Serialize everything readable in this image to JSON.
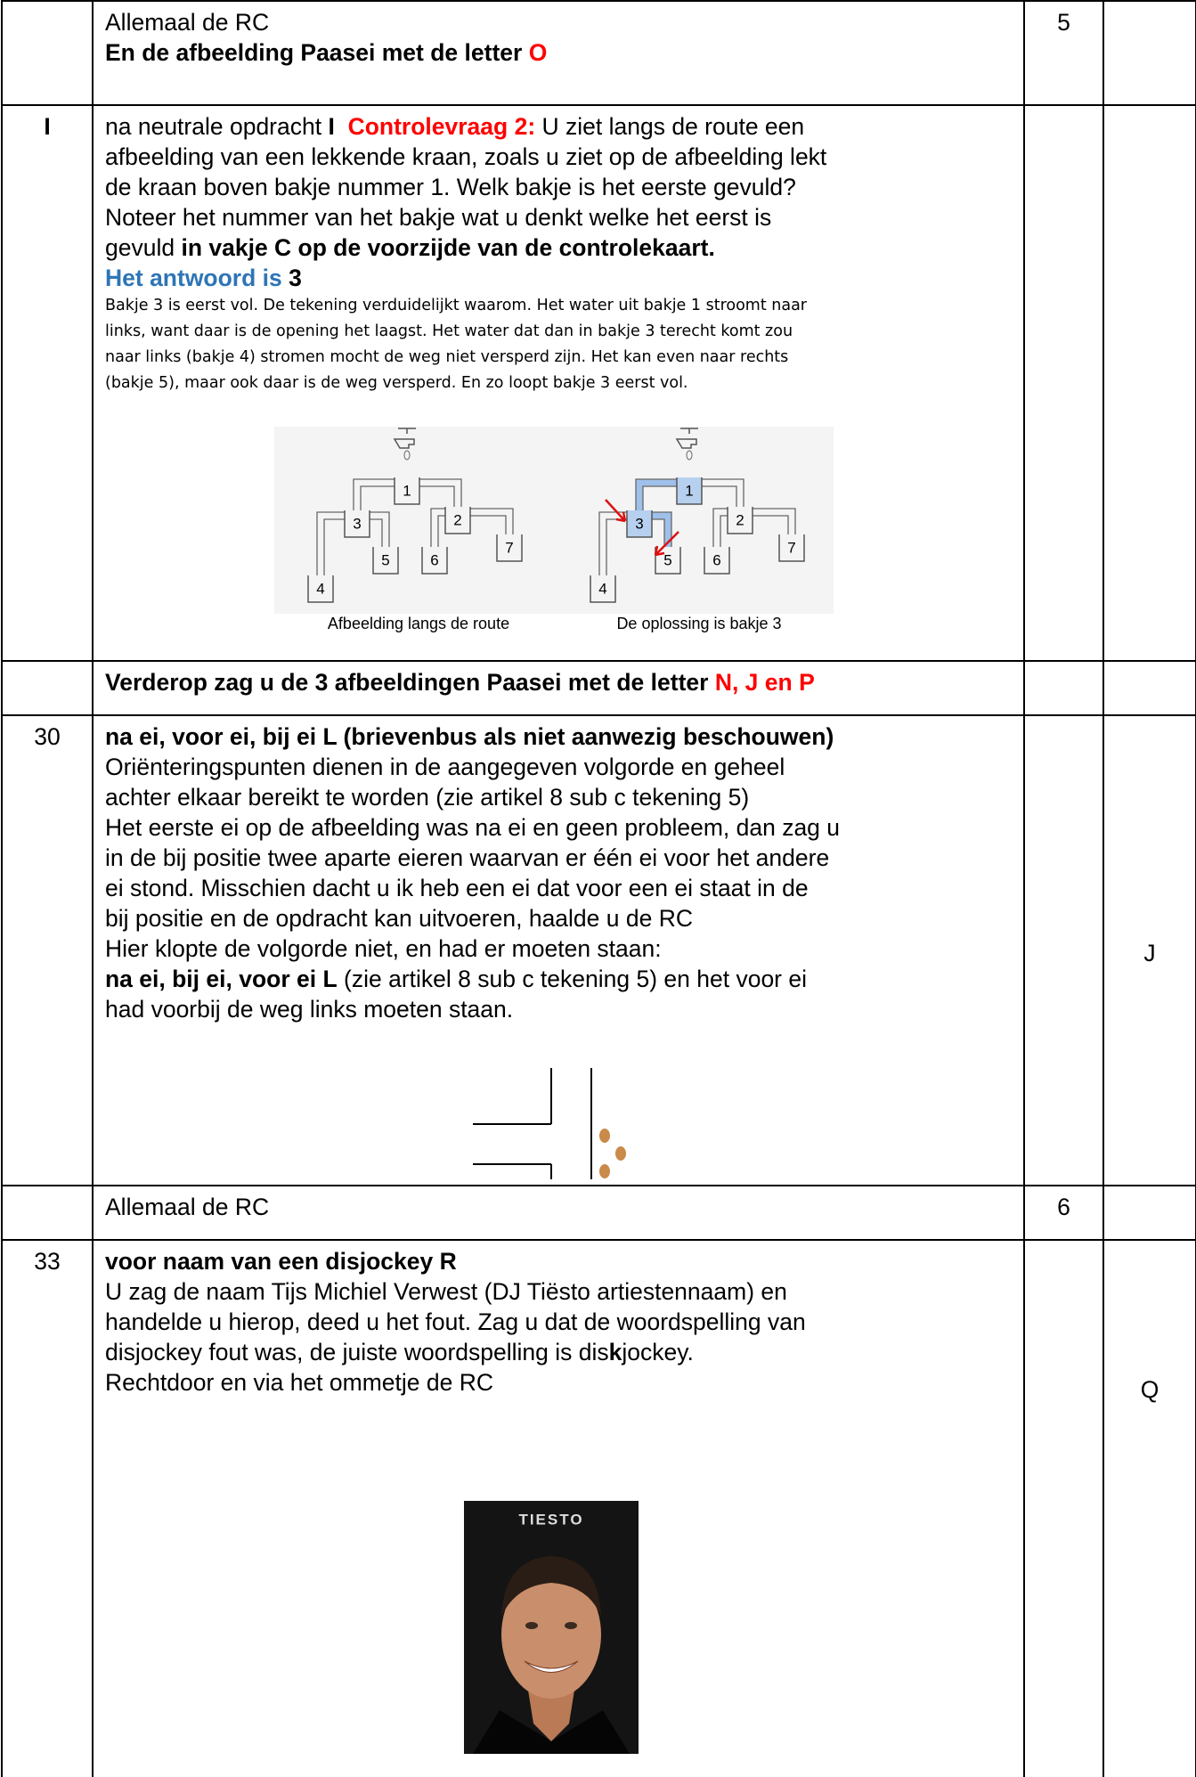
{
  "rows": [
    {
      "lines": [
        [
          {
            "text": "Allemaal de RC"
          }
        ],
        [
          {
            "text": "En de afbeelding Paasei met de letter ",
            "bold": true
          },
          {
            "text": "O",
            "bold": true,
            "color": "#ff0000"
          }
        ]
      ],
      "points": "5"
    },
    {
      "marker": "I",
      "marker_bold": true,
      "lines": [
        [
          {
            "text": "na neutrale opdracht "
          },
          {
            "text": "I",
            "bold": true
          },
          {
            "text": "  Controlevraag 2:",
            "bold": true,
            "color": "#ff0000"
          },
          {
            "text": " U ziet langs de route een"
          }
        ],
        [
          {
            "text": "afbeelding van een lekkende kraan, zoals u ziet op de afbeelding lekt"
          }
        ],
        [
          {
            "text": "de kraan boven bakje nummer 1. Welk bakje is het eerste gevuld?"
          }
        ],
        [
          {
            "text": "Noteer het nummer van het bakje wat u denkt welke het eerst is"
          }
        ],
        [
          {
            "text": "gevuld "
          },
          {
            "text": "in vakje C op de voorzijde van de controlekaart.",
            "bold": true
          }
        ],
        [
          {
            "text": "Het antwoord is ",
            "bold": true,
            "color": "#2e75b6"
          },
          {
            "text": "3",
            "bold": true
          }
        ]
      ],
      "note": [
        "Bakje 3 is eerst vol. De tekening verduidelijkt waarom. Het water uit bakje 1 stroomt naar",
        "links, want daar is de opening het laagst. Het water dat dan in bakje 3 terecht komt zou",
        "naar links (bakje 4) stromen mocht de weg niet versperd zijn. Het kan even naar rechts",
        "(bakje 5), maar ook daar is de weg versperd. En zo loopt bakje 3 eerst vol."
      ],
      "figure": {
        "buckets": [
          "1",
          "2",
          "3",
          "4",
          "5",
          "6",
          "7"
        ],
        "captions": [
          "Afbeelding langs de route",
          "De oplossing is bakje 3"
        ]
      }
    },
    {
      "lines": [
        [
          {
            "text": "Verderop zag u de 3 afbeeldingen Paasei met de letter ",
            "bold": true
          },
          {
            "text": "N, J en P",
            "bold": true,
            "color": "#ff0000"
          }
        ]
      ]
    },
    {
      "marker": "30",
      "lines": [
        [
          {
            "text": "na ei, voor ei, bij ei L (brievenbus als niet aanwezig beschouwen)",
            "bold": true
          }
        ],
        [
          {
            "text": "Oriënteringspunten dienen in de aangegeven volgorde en geheel"
          }
        ],
        [
          {
            "text": "achter elkaar bereikt te worden (zie artikel 8 sub c tekening 5)"
          }
        ],
        [
          {
            "text": "Het eerste ei op de afbeelding was na ei en geen probleem, dan zag u"
          }
        ],
        [
          {
            "text": "in de bij positie twee aparte eieren waarvan er één ei voor het andere"
          }
        ],
        [
          {
            "text": "ei stond. Misschien dacht u ik heb een ei dat voor een ei staat in de"
          }
        ],
        [
          {
            "text": "bij positie en de opdracht kan uitvoeren, haalde u de RC"
          }
        ],
        [
          {
            "text": "Hier klopte de volgorde niet, en had er moeten staan:"
          }
        ],
        [
          {
            "text": "na ei, bij ei, voor ei L",
            "bold": true
          },
          {
            "text": " (zie artikel 8 sub c tekening 5) en het voor ei"
          }
        ],
        [
          {
            "text": "had voorbij de weg links moeten staan."
          }
        ]
      ],
      "letter": "J"
    },
    {
      "lines": [
        [
          {
            "text": "Allemaal de RC"
          }
        ]
      ],
      "points": "6"
    },
    {
      "marker": "33",
      "lines": [
        [
          {
            "text": "voor naam van een disjockey R",
            "bold": true
          }
        ],
        [
          {
            "text": "U zag de naam Tijs Michiel Verwest (DJ Tiësto artiestennaam) en"
          }
        ],
        [
          {
            "text": "handelde u hierop, deed u het fout. Zag u dat de woordspelling van"
          }
        ],
        [
          {
            "text": "disjockey fout was, de juiste woordspelling is dis"
          },
          {
            "text": "k",
            "bold": true
          },
          {
            "text": "jockey."
          }
        ],
        [
          {
            "text": "Rechtdoor en via het ommetje de RC"
          }
        ]
      ],
      "photo_text": "TIESTO",
      "letter": "Q"
    }
  ]
}
